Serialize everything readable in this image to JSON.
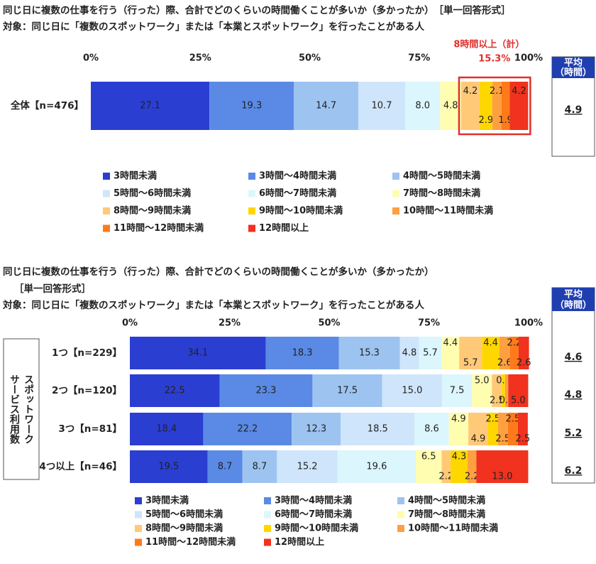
{
  "chart_data": [
    {
      "type": "stacked-bar-100",
      "title": "同じ日に複数の仕事を行う（行った）際、合計でどのくらいの時間働くことが多いか（多かったか）　［単一回答形式］",
      "subtitle": "対象：同じ日に「複数のスポットワーク」または「本業とスポットワーク」を行ったことがある人",
      "categories": [
        "全体【n=476】"
      ],
      "xlim": [
        0,
        100
      ],
      "xticks": [
        {
          "value": 0,
          "label": "0%"
        },
        {
          "value": 25,
          "label": "25%"
        },
        {
          "value": 50,
          "label": "50%"
        },
        {
          "value": 75,
          "label": "75%"
        },
        {
          "value": 100,
          "label": "100%"
        }
      ],
      "series": [
        {
          "name": "3時間未満",
          "color": "#2b3ed2",
          "values": [
            27.1
          ],
          "value_labels": [
            "27.1"
          ]
        },
        {
          "name": "3時間～4時間未満",
          "color": "#5a8ae6",
          "values": [
            19.3
          ],
          "value_labels": [
            "19.3"
          ]
        },
        {
          "name": "4時間～5時間未満",
          "color": "#9dc4f1",
          "values": [
            14.7
          ],
          "value_labels": [
            "14.7"
          ]
        },
        {
          "name": "5時間～6時間未満",
          "color": "#cfe5fb",
          "values": [
            10.7
          ],
          "value_labels": [
            "10.7"
          ]
        },
        {
          "name": "6時間～7時間未満",
          "color": "#dcf6fd",
          "values": [
            8.0
          ],
          "value_labels": [
            "8.0"
          ]
        },
        {
          "name": "7時間～8時間未満",
          "color": "#fffdb0",
          "values": [
            4.8
          ],
          "value_labels": [
            "4.8"
          ]
        },
        {
          "name": "8時間～9時間未満",
          "color": "#ffc978",
          "values": [
            4.2
          ],
          "value_labels": [
            "4.2"
          ]
        },
        {
          "name": "9時間～10時間未満",
          "color": "#ffd700",
          "values": [
            2.9
          ],
          "value_labels": [
            "2.9"
          ]
        },
        {
          "name": "10時間～11時間未満",
          "color": "#ffa040",
          "values": [
            2.1
          ],
          "value_labels": [
            "2.1"
          ]
        },
        {
          "name": "11時間～12時間未満",
          "color": "#ff7a1a",
          "values": [
            1.9
          ],
          "value_labels": [
            "1.9"
          ]
        },
        {
          "name": "12時間以上",
          "color": "#f0321e",
          "values": [
            4.2
          ],
          "value_labels": [
            "4.2"
          ]
        }
      ],
      "annotation": {
        "text": "8時間以上（計）",
        "total": {
          "value": 15.3,
          "label": "15.3%"
        }
      },
      "average": {
        "header": [
          "平均",
          "（時間）"
        ],
        "values": [
          4.9
        ]
      }
    },
    {
      "type": "stacked-bar-100",
      "title": "同じ日に複数の仕事を行う（行った）際、合計でどのくらいの時間働くことが多いか（多かったか）",
      "format_note": "［単一回答形式］",
      "subtitle": "対象：同じ日に「複数のスポットワーク」または「本業とスポットワーク」を行ったことがある人",
      "group_label": [
        "スポットワーク",
        "サービス利用数"
      ],
      "categories": [
        "1つ【n=229】",
        "2つ【n=120】",
        "3つ【n=81】",
        "4つ以上【n=46】"
      ],
      "xlim": [
        0,
        100
      ],
      "xticks": [
        {
          "value": 0,
          "label": "0%"
        },
        {
          "value": 25,
          "label": "25%"
        },
        {
          "value": 50,
          "label": "50%"
        },
        {
          "value": 75,
          "label": "75%"
        },
        {
          "value": 100,
          "label": "100%"
        }
      ],
      "series": [
        {
          "name": "3時間未満",
          "color": "#2b3ed2",
          "values": [
            34.1,
            22.5,
            18.4,
            19.5
          ],
          "value_labels": [
            "34.1",
            "22.5",
            "18.4",
            "19.5"
          ]
        },
        {
          "name": "3時間～4時間未満",
          "color": "#5a8ae6",
          "values": [
            18.3,
            23.3,
            22.2,
            8.7
          ],
          "value_labels": [
            "18.3",
            "23.3",
            "22.2",
            "8.7"
          ]
        },
        {
          "name": "4時間～5時間未満",
          "color": "#9dc4f1",
          "values": [
            15.3,
            17.5,
            12.3,
            8.7
          ],
          "value_labels": [
            "15.3",
            "17.5",
            "12.3",
            "8.7"
          ]
        },
        {
          "name": "5時間～6時間未満",
          "color": "#cfe5fb",
          "values": [
            4.8,
            15.0,
            18.5,
            15.2
          ],
          "value_labels": [
            "4.8",
            "15.0",
            "18.5",
            "15.2"
          ]
        },
        {
          "name": "6時間～7時間未満",
          "color": "#dcf6fd",
          "values": [
            5.7,
            7.5,
            8.6,
            19.6
          ],
          "value_labels": [
            "5.7",
            "7.5",
            "8.6",
            "19.6"
          ]
        },
        {
          "name": "7時間～8時間未満",
          "color": "#fffdb0",
          "values": [
            4.4,
            5.0,
            4.9,
            6.5
          ],
          "value_labels": [
            "4.4",
            "5.0",
            "4.9",
            "6.5"
          ]
        },
        {
          "name": "8時間～9時間未満",
          "color": "#ffc978",
          "values": [
            5.7,
            2.5,
            4.9,
            2.2
          ],
          "value_labels": [
            "5.7",
            "2.5",
            "4.9",
            "2.2"
          ]
        },
        {
          "name": "9時間～10時間未満",
          "color": "#ffd700",
          "values": [
            4.4,
            0.8,
            2.5,
            4.3
          ],
          "value_labels": [
            "4.4",
            "0.8",
            "2.5",
            "4.3"
          ]
        },
        {
          "name": "10時間～11時間未満",
          "color": "#ffa040",
          "values": [
            2.6,
            0.8,
            2.5,
            2.2
          ],
          "value_labels": [
            "2.6",
            "0.8",
            "2.5",
            "2.2"
          ]
        },
        {
          "name": "11時間～12時間未満",
          "color": "#ff7a1a",
          "values": [
            2.2,
            0,
            2.5,
            0
          ],
          "value_labels": [
            "2.2",
            null,
            "2.5",
            null
          ]
        },
        {
          "name": "12時間以上",
          "color": "#f0321e",
          "values": [
            2.6,
            5.0,
            2.5,
            13.0
          ],
          "value_labels": [
            "2.6",
            "5.0",
            "2.5",
            "13.0"
          ]
        }
      ],
      "average": {
        "header": [
          "平均",
          "（時間）"
        ],
        "values": [
          4.6,
          4.8,
          5.2,
          6.2
        ]
      }
    }
  ]
}
